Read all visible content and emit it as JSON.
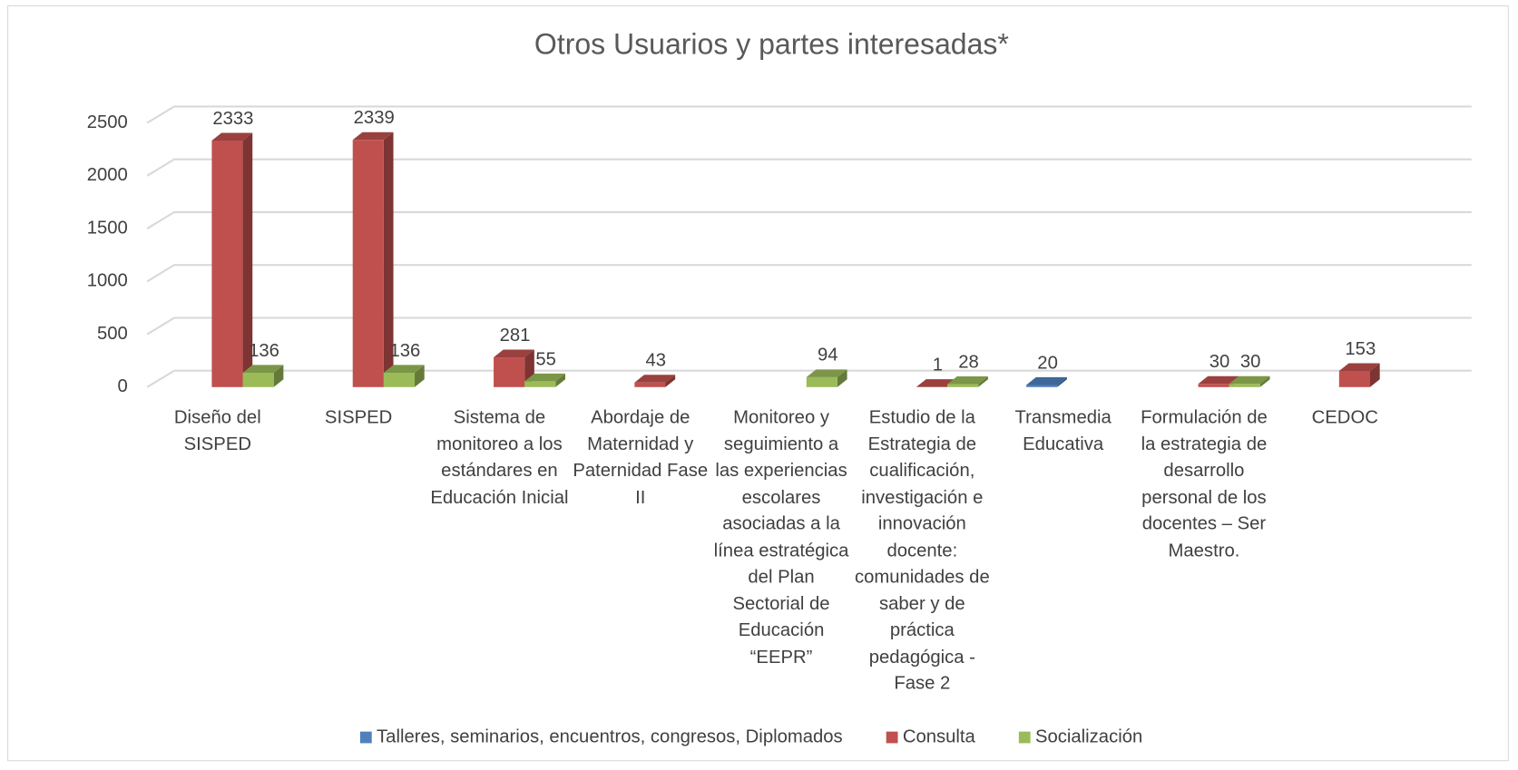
{
  "chart_data": {
    "type": "bar3d",
    "title": "Otros Usuarios y partes interesadas*",
    "categories": [
      "Diseño del SISPED",
      "SISPED",
      "Sistema de monitoreo a los estándares en Educación Inicial",
      "Abordaje de Maternidad y Paternidad Fase II",
      "Monitoreo y seguimiento a las experiencias escolares asociadas a la línea estratégica del Plan Sectorial de Educación “EEPR”",
      "Estudio de la Estrategia de cualificación, investigación e innovación docente: comunidades de saber y de práctica pedagógica - Fase 2",
      "Transmedia Educativa",
      "Formulación de la estrategia de desarrollo personal de los docentes – Ser Maestro.",
      "CEDOC"
    ],
    "series": [
      {
        "name": "Talleres, seminarios, encuentros, congresos, Diplomados",
        "color": "#4f81bd",
        "values": [
          null,
          null,
          null,
          null,
          null,
          null,
          20,
          null,
          null
        ]
      },
      {
        "name": "Consulta",
        "color": "#c0504d",
        "values": [
          2333,
          2339,
          281,
          43,
          null,
          1,
          null,
          30,
          153
        ]
      },
      {
        "name": "Socialización",
        "color": "#9bbb59",
        "values": [
          136,
          136,
          55,
          null,
          94,
          28,
          null,
          30,
          null
        ]
      }
    ],
    "ylim": [
      0,
      2500
    ],
    "yticks": [
      0,
      500,
      1000,
      1500,
      2000,
      2500
    ],
    "grid": true,
    "legend": "bottom"
  }
}
